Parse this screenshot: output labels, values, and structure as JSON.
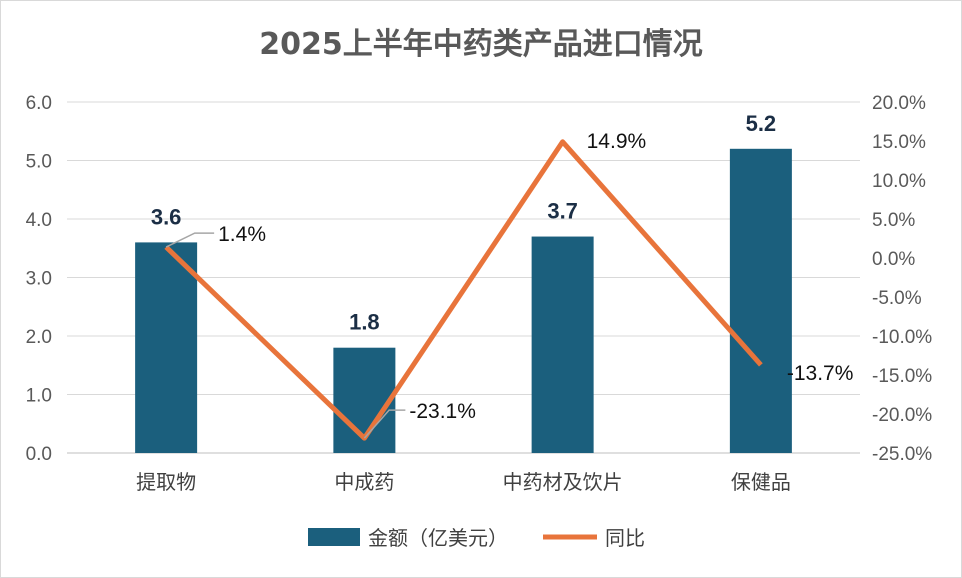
{
  "chart_data": {
    "type": "bar+line",
    "title": "2025上半年中药类产品进口情况",
    "categories": [
      "提取物",
      "中成药",
      "中药材及饮片",
      "保健品"
    ],
    "series": [
      {
        "name": "金额（亿美元）",
        "type": "bar",
        "axis": "left",
        "values": [
          3.6,
          1.8,
          3.7,
          5.2
        ],
        "labels": [
          "3.6",
          "1.8",
          "3.7",
          "5.2"
        ],
        "color": "#1b5f7d"
      },
      {
        "name": "同比",
        "type": "line",
        "axis": "right",
        "values": [
          1.4,
          -23.1,
          14.9,
          -13.7
        ],
        "labels": [
          "1.4%",
          "-23.1%",
          "14.9%",
          "-13.7%"
        ],
        "color": "#e8743b"
      }
    ],
    "left_axis": {
      "ylim": [
        0,
        6
      ],
      "ticks": [
        "0.0",
        "1.0",
        "2.0",
        "3.0",
        "4.0",
        "5.0",
        "6.0"
      ]
    },
    "right_axis": {
      "ylim": [
        -25,
        20
      ],
      "ticks": [
        "-25.0%",
        "-20.0%",
        "-15.0%",
        "-10.0%",
        "-5.0%",
        "0.0%",
        "5.0%",
        "10.0%",
        "15.0%",
        "20.0%"
      ]
    },
    "grid": true,
    "legend": "bottom"
  }
}
